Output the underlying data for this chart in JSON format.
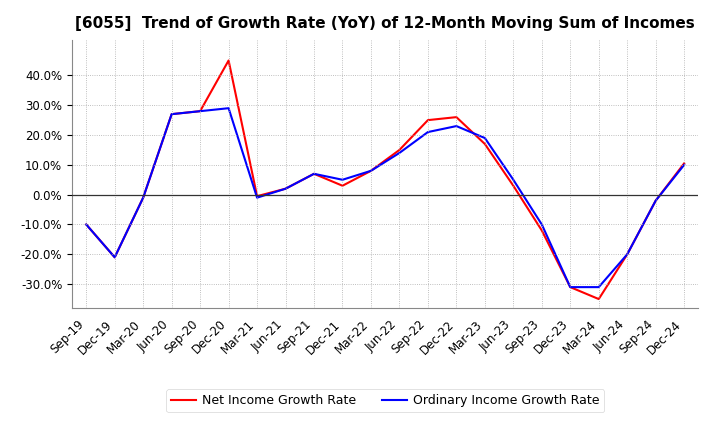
{
  "title": "[6055]  Trend of Growth Rate (YoY) of 12-Month Moving Sum of Incomes",
  "x_labels": [
    "Sep-19",
    "Dec-19",
    "Mar-20",
    "Jun-20",
    "Sep-20",
    "Dec-20",
    "Mar-21",
    "Jun-21",
    "Sep-21",
    "Dec-21",
    "Mar-22",
    "Jun-22",
    "Sep-22",
    "Dec-22",
    "Mar-23",
    "Jun-23",
    "Sep-23",
    "Dec-23",
    "Mar-24",
    "Jun-24",
    "Sep-24",
    "Dec-24"
  ],
  "ordinary_income": [
    -0.1,
    -0.21,
    -0.01,
    0.27,
    0.28,
    0.29,
    -0.01,
    0.02,
    0.07,
    0.05,
    0.08,
    0.14,
    0.21,
    0.23,
    0.19,
    0.05,
    -0.1,
    -0.31,
    -0.31,
    -0.2,
    -0.02,
    0.1
  ],
  "net_income": [
    -0.1,
    -0.21,
    -0.01,
    0.27,
    0.28,
    0.45,
    -0.005,
    0.02,
    0.07,
    0.03,
    0.08,
    0.15,
    0.25,
    0.26,
    0.17,
    0.03,
    -0.12,
    -0.31,
    -0.35,
    -0.2,
    -0.02,
    0.105
  ],
  "ordinary_color": "#0000FF",
  "net_color": "#FF0000",
  "ylim": [
    -0.38,
    0.52
  ],
  "yticks": [
    -0.3,
    -0.2,
    -0.1,
    0.0,
    0.1,
    0.2,
    0.3,
    0.4
  ],
  "legend_ordinary": "Ordinary Income Growth Rate",
  "legend_net": "Net Income Growth Rate",
  "background_color": "#FFFFFF",
  "plot_bg_color": "#FFFFFF",
  "grid_color": "#AAAAAA",
  "title_fontsize": 11,
  "tick_fontsize": 8.5
}
